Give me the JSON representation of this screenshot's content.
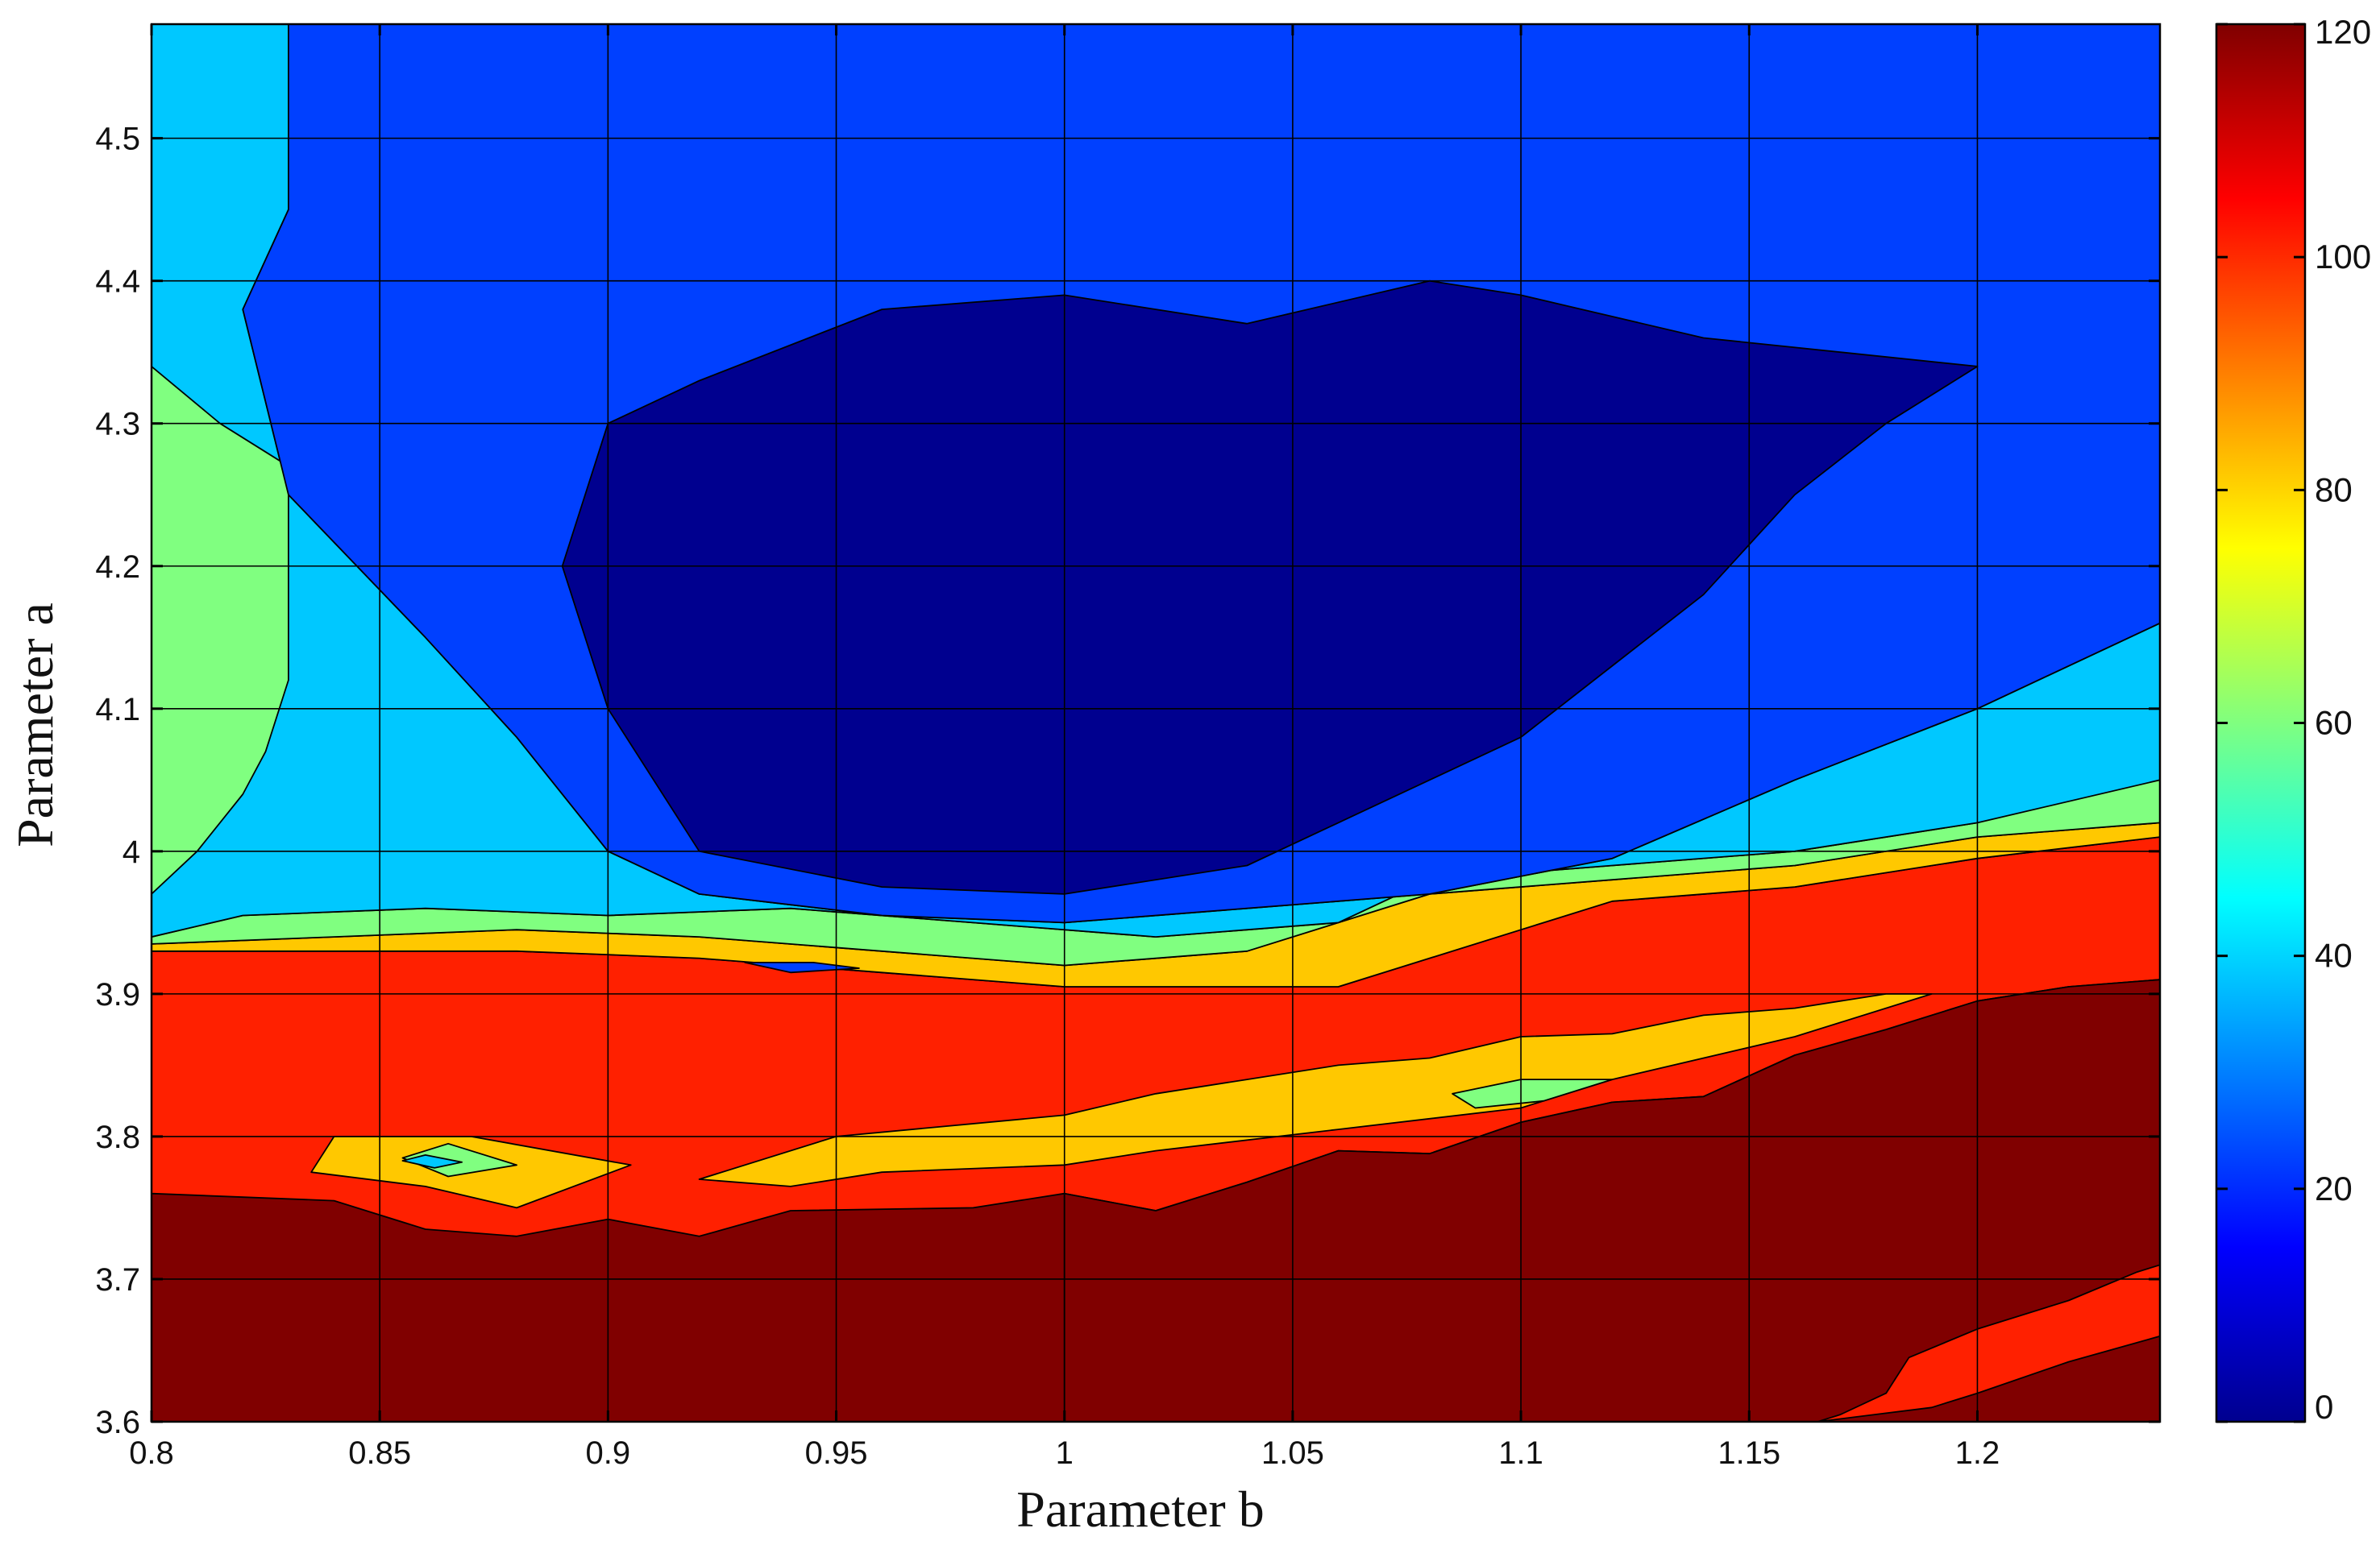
{
  "chart_data": {
    "type": "contour",
    "title": "",
    "xlabel": "Parameter b",
    "ylabel": "Parameter a",
    "xlim": [
      0.8,
      1.24
    ],
    "ylim": [
      3.6,
      4.58
    ],
    "x_ticks": [
      "0.8",
      "0.85",
      "0.9",
      "0.95",
      "1",
      "1.05",
      "1.1",
      "1.15",
      "1.2"
    ],
    "x_tick_values": [
      0.8,
      0.85,
      0.9,
      0.95,
      1.0,
      1.05,
      1.1,
      1.15,
      1.2
    ],
    "y_ticks": [
      "3.6",
      "3.7",
      "3.8",
      "3.9",
      "4",
      "4.1",
      "4.2",
      "4.3",
      "4.4",
      "4.5"
    ],
    "y_tick_values": [
      3.6,
      3.7,
      3.8,
      3.9,
      4.0,
      4.1,
      4.2,
      4.3,
      4.4,
      4.5
    ],
    "grid": true,
    "colormap": "jet",
    "colorbar": {
      "location": "right",
      "range": [
        0,
        120
      ],
      "ticks": [
        "0",
        "20",
        "40",
        "60",
        "80",
        "100",
        "120"
      ],
      "tick_values": [
        0,
        20,
        40,
        60,
        80,
        100,
        120
      ]
    },
    "level_colors": {
      "0": "#00008f",
      "20": "#0040ff",
      "40": "#00c8ff",
      "60": "#80ff80",
      "80": "#ffc800",
      "100": "#ff2000",
      "120": "#800000"
    },
    "regions": [
      {
        "level": 120,
        "points": [
          [
            0.8,
            3.6
          ],
          [
            1.24,
            3.6
          ],
          [
            1.24,
            3.76
          ],
          [
            0.8,
            3.76
          ]
        ]
      },
      {
        "level": 100,
        "points": [
          [
            0.8,
            3.76
          ],
          [
            0.84,
            3.755
          ],
          [
            0.86,
            3.735
          ],
          [
            0.88,
            3.73
          ],
          [
            0.9,
            3.742
          ],
          [
            0.92,
            3.73
          ],
          [
            0.94,
            3.748
          ],
          [
            0.98,
            3.75
          ],
          [
            1.0,
            3.76
          ],
          [
            1.02,
            3.748
          ],
          [
            1.04,
            3.768
          ],
          [
            1.06,
            3.79
          ],
          [
            1.08,
            3.788
          ],
          [
            1.1,
            3.81
          ],
          [
            1.12,
            3.824
          ],
          [
            1.14,
            3.828
          ],
          [
            1.16,
            3.857
          ],
          [
            1.18,
            3.875
          ],
          [
            1.2,
            3.895
          ],
          [
            1.22,
            3.905
          ],
          [
            1.24,
            3.91
          ],
          [
            1.24,
            4.01
          ],
          [
            1.2,
            3.995
          ],
          [
            1.16,
            3.975
          ],
          [
            1.12,
            3.965
          ],
          [
            1.1,
            3.945
          ],
          [
            1.06,
            3.905
          ],
          [
            1.0,
            3.905
          ],
          [
            0.96,
            3.915
          ],
          [
            0.92,
            3.925
          ],
          [
            0.88,
            3.93
          ],
          [
            0.84,
            3.93
          ],
          [
            0.8,
            3.93
          ]
        ]
      },
      {
        "level": 120,
        "points": [
          [
            1.24,
            3.91
          ],
          [
            1.22,
            3.905
          ],
          [
            1.2,
            3.895
          ],
          [
            1.18,
            3.875
          ],
          [
            1.16,
            3.857
          ],
          [
            1.14,
            3.828
          ],
          [
            1.12,
            3.824
          ],
          [
            1.1,
            3.81
          ],
          [
            1.08,
            3.788
          ],
          [
            1.06,
            3.79
          ],
          [
            1.04,
            3.768
          ],
          [
            1.02,
            3.748
          ],
          [
            1.0,
            3.76
          ],
          [
            1.0,
            3.6
          ],
          [
            1.24,
            3.6
          ]
        ]
      },
      {
        "level": 100,
        "points": [
          [
            1.165,
            3.6
          ],
          [
            1.19,
            3.61
          ],
          [
            1.2,
            3.62
          ],
          [
            1.22,
            3.642
          ],
          [
            1.24,
            3.66
          ],
          [
            1.24,
            3.71
          ],
          [
            1.235,
            3.705
          ],
          [
            1.22,
            3.685
          ],
          [
            1.2,
            3.665
          ],
          [
            1.185,
            3.645
          ],
          [
            1.18,
            3.62
          ],
          [
            1.17,
            3.605
          ]
        ]
      },
      {
        "level": 80,
        "points": [
          [
            0.84,
            3.8
          ],
          [
            0.87,
            3.8
          ],
          [
            0.905,
            3.78
          ],
          [
            0.88,
            3.75
          ],
          [
            0.86,
            3.765
          ],
          [
            0.835,
            3.775
          ]
        ]
      },
      {
        "level": 60,
        "points": [
          [
            0.855,
            3.785
          ],
          [
            0.865,
            3.795
          ],
          [
            0.88,
            3.78
          ],
          [
            0.865,
            3.772
          ]
        ]
      },
      {
        "level": 40,
        "points": [
          [
            0.855,
            3.783
          ],
          [
            0.86,
            3.787
          ],
          [
            0.868,
            3.782
          ],
          [
            0.862,
            3.778
          ]
        ]
      },
      {
        "level": 80,
        "points": [
          [
            0.92,
            3.77
          ],
          [
            0.95,
            3.8
          ],
          [
            1.0,
            3.815
          ],
          [
            1.02,
            3.83
          ],
          [
            1.04,
            3.84
          ],
          [
            1.06,
            3.85
          ],
          [
            1.08,
            3.855
          ],
          [
            1.1,
            3.87
          ],
          [
            1.12,
            3.872
          ],
          [
            1.14,
            3.885
          ],
          [
            1.16,
            3.89
          ],
          [
            1.18,
            3.9
          ],
          [
            1.19,
            3.9
          ],
          [
            1.16,
            3.87
          ],
          [
            1.12,
            3.84
          ],
          [
            1.1,
            3.82
          ],
          [
            1.06,
            3.805
          ],
          [
            1.02,
            3.79
          ],
          [
            1.0,
            3.78
          ],
          [
            0.96,
            3.775
          ],
          [
            0.94,
            3.765
          ]
        ]
      },
      {
        "level": 60,
        "points": [
          [
            1.085,
            3.83
          ],
          [
            1.1,
            3.84
          ],
          [
            1.12,
            3.84
          ],
          [
            1.105,
            3.825
          ],
          [
            1.09,
            3.82
          ]
        ]
      },
      {
        "level": 80,
        "points": [
          [
            0.8,
            3.93
          ],
          [
            0.84,
            3.93
          ],
          [
            0.88,
            3.93
          ],
          [
            0.92,
            3.925
          ],
          [
            0.96,
            3.915
          ],
          [
            1.0,
            3.905
          ],
          [
            1.06,
            3.905
          ],
          [
            1.1,
            3.945
          ],
          [
            1.12,
            3.965
          ],
          [
            1.16,
            3.975
          ],
          [
            1.2,
            3.995
          ],
          [
            1.24,
            4.01
          ],
          [
            1.24,
            4.02
          ],
          [
            1.2,
            4.01
          ],
          [
            1.16,
            3.99
          ],
          [
            1.12,
            3.98
          ],
          [
            1.08,
            3.97
          ],
          [
            1.04,
            3.93
          ],
          [
            1.0,
            3.92
          ],
          [
            0.96,
            3.93
          ],
          [
            0.92,
            3.94
          ],
          [
            0.88,
            3.945
          ],
          [
            0.84,
            3.94
          ],
          [
            0.8,
            3.935
          ]
        ]
      },
      {
        "level": 60,
        "points": [
          [
            0.8,
            3.935
          ],
          [
            0.84,
            3.94
          ],
          [
            0.88,
            3.945
          ],
          [
            0.92,
            3.94
          ],
          [
            0.96,
            3.93
          ],
          [
            1.0,
            3.92
          ],
          [
            1.04,
            3.93
          ],
          [
            1.08,
            3.97
          ],
          [
            1.12,
            3.98
          ],
          [
            1.16,
            3.99
          ],
          [
            1.2,
            4.01
          ],
          [
            1.24,
            4.02
          ],
          [
            1.24,
            4.05
          ],
          [
            1.22,
            4.04
          ],
          [
            1.2,
            4.02
          ],
          [
            1.16,
            4.0
          ],
          [
            1.12,
            3.99
          ],
          [
            1.08,
            3.98
          ],
          [
            1.06,
            3.95
          ],
          [
            1.02,
            3.94
          ],
          [
            0.98,
            3.95
          ],
          [
            0.94,
            3.96
          ],
          [
            0.9,
            3.955
          ],
          [
            0.86,
            3.96
          ],
          [
            0.82,
            3.955
          ],
          [
            0.8,
            3.94
          ]
        ]
      },
      {
        "level": 40,
        "points": [
          [
            0.8,
            3.94
          ],
          [
            0.82,
            3.955
          ],
          [
            0.86,
            3.96
          ],
          [
            0.9,
            3.955
          ],
          [
            0.94,
            3.96
          ],
          [
            0.98,
            3.95
          ],
          [
            1.02,
            3.94
          ],
          [
            1.06,
            3.95
          ],
          [
            1.08,
            3.98
          ],
          [
            1.12,
            3.99
          ],
          [
            1.16,
            4.0
          ],
          [
            1.2,
            4.02
          ],
          [
            1.24,
            4.05
          ],
          [
            1.24,
            4.16
          ],
          [
            1.2,
            4.1
          ],
          [
            1.16,
            4.05
          ],
          [
            1.12,
            3.995
          ],
          [
            1.08,
            3.97
          ],
          [
            1.04,
            3.96
          ],
          [
            1.0,
            3.95
          ],
          [
            0.96,
            3.955
          ],
          [
            0.92,
            3.97
          ],
          [
            0.9,
            4.0
          ],
          [
            0.88,
            4.08
          ],
          [
            0.86,
            4.15
          ],
          [
            0.83,
            4.25
          ],
          [
            0.82,
            4.38
          ],
          [
            0.83,
            4.45
          ],
          [
            0.83,
            4.58
          ],
          [
            0.8,
            4.58
          ]
        ]
      },
      {
        "level": 60,
        "points": [
          [
            0.8,
            4.34
          ],
          [
            0.815,
            4.3
          ],
          [
            0.83,
            4.27
          ],
          [
            0.83,
            4.2
          ],
          [
            0.83,
            4.12
          ],
          [
            0.825,
            4.07
          ],
          [
            0.82,
            4.04
          ],
          [
            0.81,
            4.0
          ],
          [
            0.8,
            3.97
          ]
        ]
      },
      {
        "level": 20,
        "points": [
          [
            0.83,
            4.58
          ],
          [
            0.83,
            4.45
          ],
          [
            0.82,
            4.38
          ],
          [
            0.83,
            4.25
          ],
          [
            0.86,
            4.15
          ],
          [
            0.88,
            4.08
          ],
          [
            0.9,
            4.0
          ],
          [
            0.92,
            3.97
          ],
          [
            0.96,
            3.955
          ],
          [
            1.0,
            3.95
          ],
          [
            1.04,
            3.96
          ],
          [
            1.08,
            3.97
          ],
          [
            1.12,
            3.995
          ],
          [
            1.16,
            4.05
          ],
          [
            1.2,
            4.1
          ],
          [
            1.24,
            4.16
          ],
          [
            1.24,
            4.58
          ]
        ]
      },
      {
        "level": 0,
        "points": [
          [
            0.92,
            4.33
          ],
          [
            0.96,
            4.38
          ],
          [
            1.0,
            4.39
          ],
          [
            1.04,
            4.37
          ],
          [
            1.08,
            4.4
          ],
          [
            1.1,
            4.39
          ],
          [
            1.14,
            4.36
          ],
          [
            1.2,
            4.34
          ],
          [
            1.18,
            4.3
          ],
          [
            1.16,
            4.25
          ],
          [
            1.14,
            4.18
          ],
          [
            1.1,
            4.08
          ],
          [
            1.06,
            4.02
          ],
          [
            1.04,
            3.99
          ],
          [
            1.0,
            3.97
          ],
          [
            0.96,
            3.975
          ],
          [
            0.92,
            4.0
          ],
          [
            0.9,
            4.1
          ],
          [
            0.89,
            4.2
          ],
          [
            0.9,
            4.3
          ]
        ]
      },
      {
        "level": 20,
        "points": [
          [
            0.93,
            3.922
          ],
          [
            0.945,
            3.922
          ],
          [
            0.955,
            3.918
          ],
          [
            0.94,
            3.915
          ]
        ]
      }
    ]
  }
}
